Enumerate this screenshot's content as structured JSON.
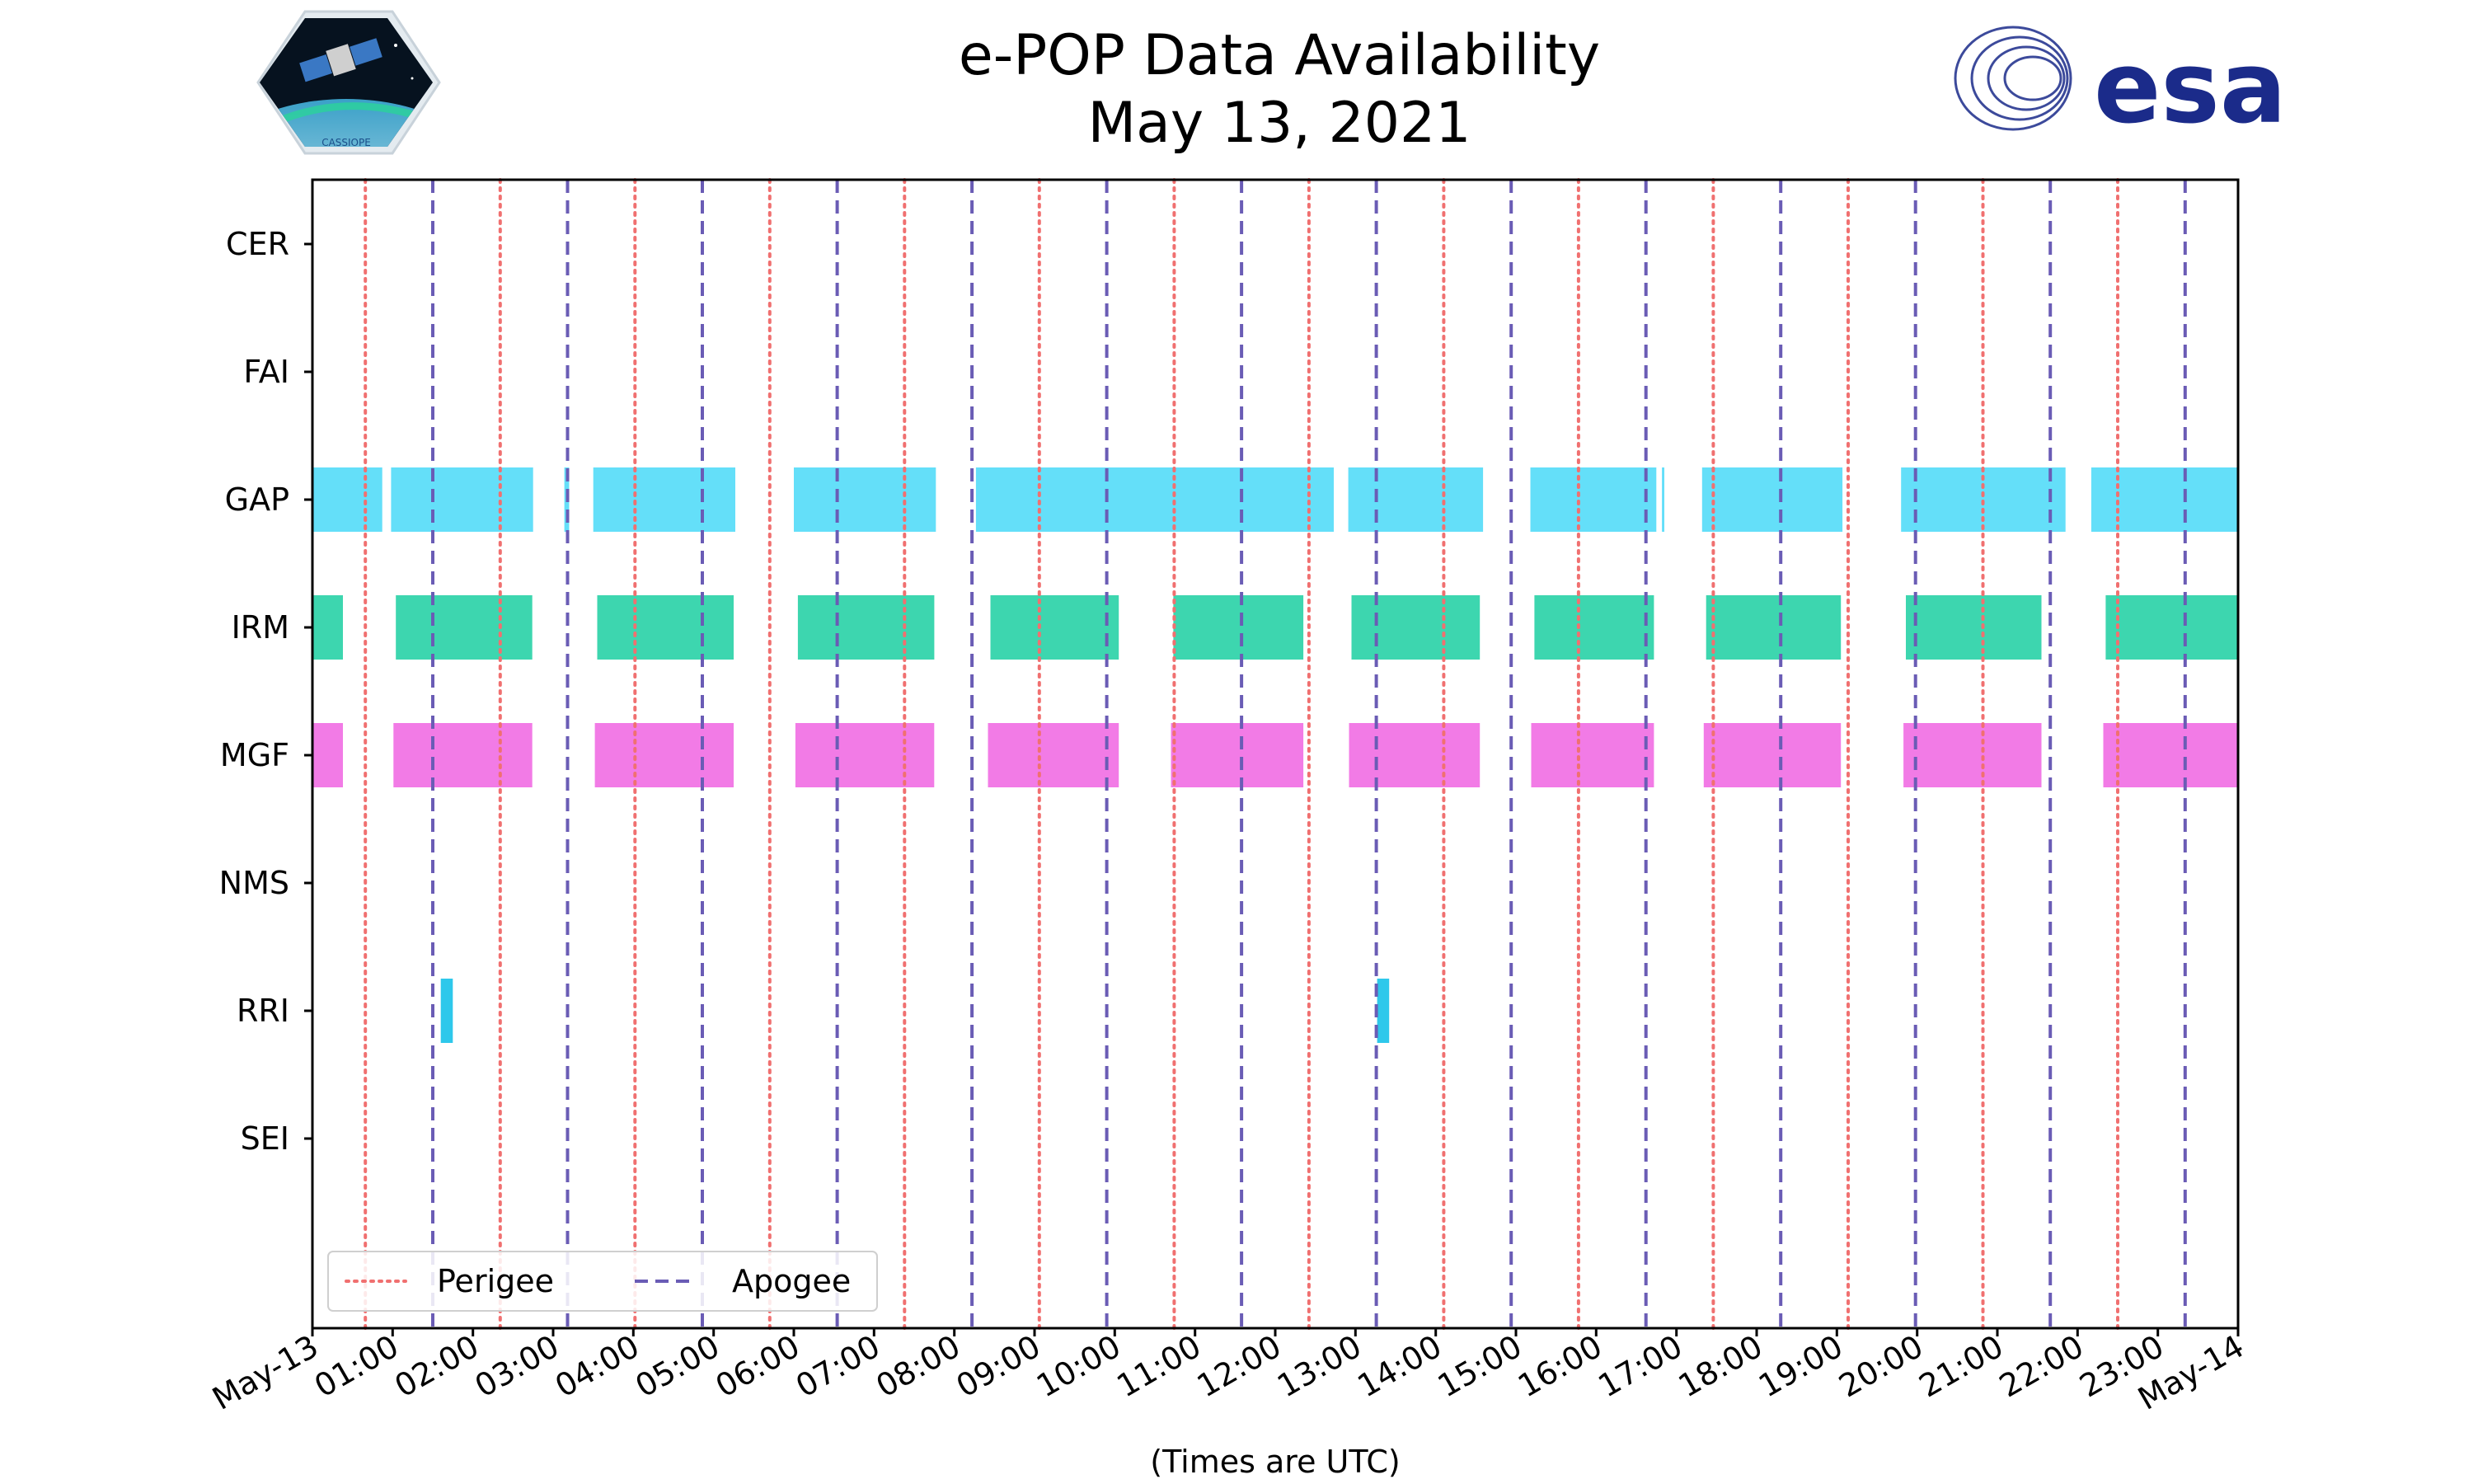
{
  "chart_data": {
    "type": "timeline",
    "title_line1": "e-POP Data Availability",
    "title_line2": "May 13, 2021",
    "xlabel": "(Times are UTC)",
    "x_range_hours": [
      0,
      24
    ],
    "x_tick_labels": [
      "May-13",
      "01:00",
      "02:00",
      "03:00",
      "04:00",
      "05:00",
      "06:00",
      "07:00",
      "08:00",
      "09:00",
      "10:00",
      "11:00",
      "12:00",
      "13:00",
      "14:00",
      "15:00",
      "16:00",
      "17:00",
      "18:00",
      "19:00",
      "20:00",
      "21:00",
      "22:00",
      "23:00",
      "May-14"
    ],
    "instruments": [
      "CER",
      "FAI",
      "GAP",
      "IRM",
      "MGF",
      "NMS",
      "RRI",
      "SEI"
    ],
    "colors": {
      "GAP": "#64dff9",
      "IRM": "#3dd6af",
      "MGF": "#f27be6",
      "RRI": "#2ec8eb",
      "perigee": "#f07070",
      "apogee": "#6a5cb5"
    },
    "intervals": {
      "CER": [],
      "FAI": [],
      "GAP": [
        [
          0.0,
          0.87
        ],
        [
          0.98,
          2.75
        ],
        [
          3.14,
          3.2
        ],
        [
          3.5,
          5.27
        ],
        [
          6.0,
          7.77
        ],
        [
          8.27,
          12.73
        ],
        [
          12.91,
          14.59
        ],
        [
          15.18,
          16.75
        ],
        [
          16.82,
          16.85
        ],
        [
          17.32,
          19.07
        ],
        [
          19.8,
          21.85
        ],
        [
          22.17,
          24.0
        ]
      ],
      "IRM": [
        [
          0.0,
          0.38
        ],
        [
          1.04,
          2.74
        ],
        [
          3.55,
          5.25
        ],
        [
          6.05,
          7.75
        ],
        [
          8.45,
          10.05
        ],
        [
          10.73,
          12.35
        ],
        [
          12.95,
          14.55
        ],
        [
          15.23,
          16.72
        ],
        [
          17.37,
          19.05
        ],
        [
          19.86,
          21.55
        ],
        [
          22.35,
          24.03
        ]
      ],
      "MGF": [
        [
          0.0,
          0.38
        ],
        [
          1.01,
          2.74
        ],
        [
          3.52,
          5.25
        ],
        [
          6.02,
          7.75
        ],
        [
          8.42,
          10.05
        ],
        [
          10.7,
          12.35
        ],
        [
          12.92,
          14.55
        ],
        [
          15.19,
          16.72
        ],
        [
          17.34,
          19.05
        ],
        [
          19.83,
          21.55
        ],
        [
          22.32,
          24.03
        ]
      ],
      "NMS": [],
      "RRI": [
        [
          1.6,
          1.75
        ],
        [
          13.27,
          13.42
        ]
      ],
      "SEI": []
    },
    "perigee_hours": [
      0.66,
      2.34,
      4.02,
      5.7,
      7.38,
      9.06,
      10.74,
      12.42,
      14.1,
      15.78,
      17.46,
      19.14,
      20.82,
      22.5
    ],
    "apogee_hours": [
      1.5,
      3.18,
      4.86,
      6.54,
      8.22,
      9.9,
      11.58,
      13.26,
      14.94,
      16.62,
      18.3,
      19.98,
      21.66,
      23.34
    ],
    "legend": [
      "Perigee",
      "Apogee"
    ]
  },
  "logos": {
    "cassiope_label": "CASSIOPE",
    "esa_label": "esa"
  }
}
